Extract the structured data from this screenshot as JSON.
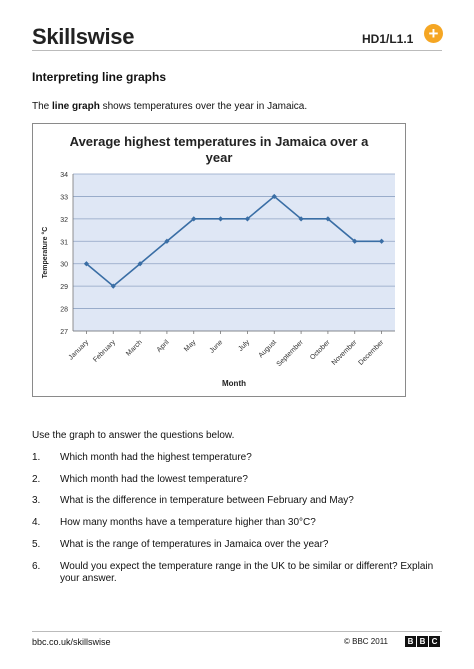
{
  "header": {
    "logo_text": "Skillswise",
    "code": "HD1/L1.1",
    "plus_symbol": "+"
  },
  "page_title": "Interpreting line graphs",
  "intro": {
    "prefix": "The ",
    "bold": "line graph",
    "suffix": " shows temperatures over the year in Jamaica."
  },
  "chart_data": {
    "type": "line",
    "title_line1": "Average highest temperatures in Jamaica over a",
    "title_line2": "year",
    "xlabel": "Month",
    "ylabel": "Temperature °C",
    "categories": [
      "January",
      "February",
      "March",
      "April",
      "May",
      "June",
      "July",
      "August",
      "September",
      "October",
      "November",
      "December"
    ],
    "values": [
      30,
      29,
      30,
      31,
      32,
      32,
      32,
      33,
      32,
      32,
      31,
      31
    ],
    "ylim": [
      27,
      34
    ],
    "yticks": [
      27,
      28,
      29,
      30,
      31,
      32,
      33,
      34
    ],
    "grid": true,
    "line_color": "#3a6ea5",
    "plot_bg": "#dfe7f5"
  },
  "instructions": "Use the graph to answer the questions below.",
  "questions": [
    {
      "num": "1.",
      "text": "Which month had the highest temperature?"
    },
    {
      "num": "2.",
      "text": "Which month had the lowest temperature?"
    },
    {
      "num": "3.",
      "text": "What is the difference in temperature between February and May?"
    },
    {
      "num": "4.",
      "text": "How many months have a temperature higher than 30°C?"
    },
    {
      "num": "5.",
      "text": "What is the range of temperatures in Jamaica over the year?"
    },
    {
      "num": "6.",
      "text": "Would you expect the temperature range in the UK to be similar or different? Explain your answer."
    }
  ],
  "footer": {
    "url": "bbc.co.uk/skillswise",
    "copyright": "© BBC 2011",
    "bbc_letters": [
      "B",
      "B",
      "C"
    ]
  },
  "colors": {
    "accent_plus": "#f5a623"
  }
}
